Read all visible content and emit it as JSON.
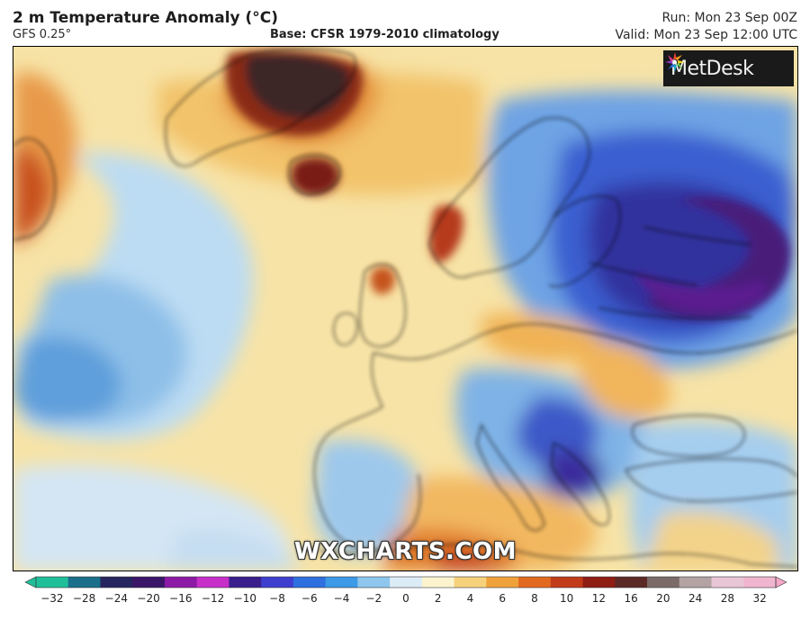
{
  "header": {
    "title": "2 m Temperature Anomaly (°C)",
    "model": "GFS 0.25°",
    "base": "Base: CFSR 1979-2010 climatology",
    "run": "Run: Mon 23 Sep 00Z",
    "valid": "Valid: Mon 23 Sep 12:00 UTC"
  },
  "logo": {
    "text": "MetDesk",
    "icon": "metdesk-burst-icon"
  },
  "watermark": "WXCHARTS.COM",
  "colorbar": {
    "labels": [
      "−32",
      "−28",
      "−24",
      "−20",
      "−16",
      "−12",
      "−10",
      "−8",
      "−6",
      "−4",
      "−2",
      "0",
      "2",
      "4",
      "6",
      "8",
      "10",
      "12",
      "16",
      "20",
      "24",
      "28",
      "32"
    ],
    "colors": [
      "#1fbf9a",
      "#1a6f8a",
      "#26255f",
      "#3b1668",
      "#8d1aa6",
      "#c72fc9",
      "#3a1f8c",
      "#3f3fcf",
      "#2f6fe0",
      "#3c9ae6",
      "#8ec6ee",
      "#dcecf7",
      "#fbf4cf",
      "#f6d27c",
      "#f0a23a",
      "#e26a20",
      "#c23b1a",
      "#8e1d14",
      "#5c2a26",
      "#7b6b68",
      "#b3a3a3",
      "#e8c6d6",
      "#f0b6d0"
    ],
    "end_left_color": "#1fbf9a",
    "end_right_color": "#f5a8c8"
  },
  "map": {
    "palette": {
      "warm_light": "#f8e6ad",
      "warm": "#f3cb6e",
      "warm_orange": "#eaa046",
      "hot": "#c5401d",
      "very_hot": "#6b1a12",
      "brownish": "#3d2a28",
      "cool_light": "#d8e9f6",
      "cool": "#9bc8ea",
      "cold": "#2b63d6",
      "very_cold": "#3a2a9e",
      "extreme_cold": "#4b1f86",
      "coast": "#111111"
    }
  }
}
